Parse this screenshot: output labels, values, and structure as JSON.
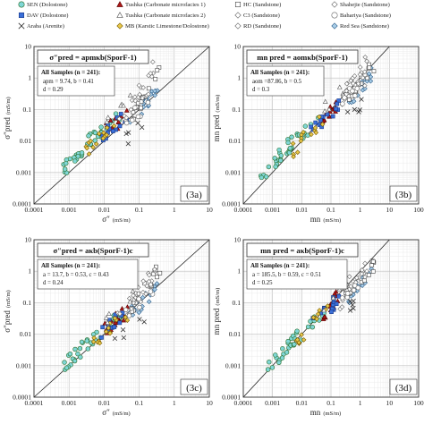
{
  "legend": {
    "entries": [
      {
        "label": "SEN (Dolostone)",
        "marker": "circle",
        "fill": "#7fd6d6",
        "stroke": "#2b6f2b"
      },
      {
        "label": "Tushka (Carbonate microfacies 1)",
        "marker": "triangle",
        "fill": "#b01818",
        "stroke": "#5a0000"
      },
      {
        "label": "HC (Sandstone)",
        "marker": "square",
        "fill": "#ffffff",
        "stroke": "#444444"
      },
      {
        "label": "Shahejie (Sandstone)",
        "marker": "diamond",
        "fill": "#ffffff",
        "stroke": "#666666"
      },
      {
        "label": "DAV (Dolostone)",
        "marker": "square",
        "fill": "#3a6fd8",
        "stroke": "#1a3a8a"
      },
      {
        "label": "Tushka (Carbonate microfacies 2)",
        "marker": "triangle",
        "fill": "#ffffff",
        "stroke": "#555555"
      },
      {
        "label": "C3 (Sandstone)",
        "marker": "diamond",
        "fill": "#ffffff",
        "stroke": "#666666"
      },
      {
        "label": "Bahariya (Sandstone)",
        "marker": "circle",
        "fill": "#ffffff",
        "stroke": "#666666"
      },
      {
        "label": "Araba (Arenite)",
        "marker": "x",
        "fill": "#333333",
        "stroke": "#333333"
      },
      {
        "label": "MB (Karstic Limestone/Dolostone)",
        "marker": "diamond",
        "fill": "#e8c84a",
        "stroke": "#7a5c00"
      },
      {
        "label": "RD (Sandstone)",
        "marker": "diamond",
        "fill": "#ffffff",
        "stroke": "#666666"
      },
      {
        "label": "Red Sea (Sandstone)",
        "marker": "diamond",
        "fill": "#a8cde8",
        "stroke": "#2f5f8a"
      }
    ]
  },
  "chart_data": [
    {
      "type": "scatter",
      "panel_label": "(3a)",
      "equation": "σ″pred = apmκb(SporF-1)",
      "stats_title": "All Samples (n = 241):",
      "stats_lines": [
        "apm = 9.74, b = 0.41",
        "d = 0.29"
      ],
      "xlabel": "σ″",
      "xunit": "(mS/m)",
      "ylabel": "σ″pred",
      "yunit": "(mS/m)",
      "xscale": "log",
      "yscale": "log",
      "xlim": [
        0.0001,
        10
      ],
      "ylim": [
        0.0001,
        10
      ],
      "xticks": [
        "0.0001",
        "0.001",
        "0.01",
        "0.1",
        "1",
        "10"
      ],
      "yticks": [
        "0.0001",
        "0.001",
        "0.01",
        "0.1",
        "1",
        "10"
      ],
      "grid": true,
      "clusters": [
        {
          "series": 0,
          "x": [
            0.0006,
            0.0045
          ],
          "y": [
            0.001,
            0.012
          ],
          "n": 20
        },
        {
          "series": 0,
          "x": [
            0.003,
            0.03
          ],
          "y": [
            0.008,
            0.06
          ],
          "n": 18
        },
        {
          "series": 1,
          "x": [
            0.01,
            0.05
          ],
          "y": [
            0.02,
            0.07
          ],
          "n": 16
        },
        {
          "series": 4,
          "x": [
            0.008,
            0.06
          ],
          "y": [
            0.015,
            0.09
          ],
          "n": 14
        },
        {
          "series": 9,
          "x": [
            0.003,
            0.04
          ],
          "y": [
            0.005,
            0.05
          ],
          "n": 14
        },
        {
          "series": 11,
          "x": [
            0.05,
            0.35
          ],
          "y": [
            0.04,
            0.4
          ],
          "n": 18
        },
        {
          "series": 2,
          "x": [
            0.06,
            0.4
          ],
          "y": [
            0.05,
            2.5
          ],
          "n": 16
        },
        {
          "series": 3,
          "x": [
            0.05,
            0.3
          ],
          "y": [
            0.1,
            3
          ],
          "n": 14
        },
        {
          "series": 6,
          "x": [
            0.02,
            0.2
          ],
          "y": [
            0.03,
            0.3
          ],
          "n": 10
        },
        {
          "series": 5,
          "x": [
            0.01,
            0.08
          ],
          "y": [
            0.05,
            0.3
          ],
          "n": 6
        },
        {
          "series": 8,
          "x": [
            0.02,
            0.15
          ],
          "y": [
            0.005,
            0.04
          ],
          "n": 5
        },
        {
          "series": 7,
          "x": [
            0.04,
            0.25
          ],
          "y": [
            0.04,
            0.2
          ],
          "n": 6
        }
      ]
    },
    {
      "type": "scatter",
      "panel_label": "(3b)",
      "equation": "mn pred = aomκb(SporF-1)",
      "stats_title": "All Samples (n = 241):",
      "stats_lines": [
        "aom =87.86, b = 0.5",
        "d = 0.3"
      ],
      "xlabel": "mn",
      "xunit": "(mS/m)",
      "ylabel": "mn pred",
      "yunit": "(mS/m)",
      "xscale": "log",
      "yscale": "log",
      "xlim": [
        0.0001,
        100
      ],
      "ylim": [
        0.0001,
        10
      ],
      "xticks": [
        "0.0001",
        "0.001",
        "0.01",
        "0.1",
        "1",
        "10",
        "100"
      ],
      "yticks": [
        "0.0001",
        "0.001",
        "0.01",
        "0.1",
        "1",
        "10"
      ],
      "grid": true,
      "clusters": [
        {
          "series": 0,
          "x": [
            0.0004,
            0.005
          ],
          "y": [
            0.0008,
            0.01
          ],
          "n": 18
        },
        {
          "series": 0,
          "x": [
            0.003,
            0.05
          ],
          "y": [
            0.005,
            0.06
          ],
          "n": 18
        },
        {
          "series": 1,
          "x": [
            0.05,
            0.2
          ],
          "y": [
            0.04,
            0.2
          ],
          "n": 14
        },
        {
          "series": 4,
          "x": [
            0.02,
            0.2
          ],
          "y": [
            0.02,
            0.15
          ],
          "n": 14
        },
        {
          "series": 9,
          "x": [
            0.005,
            0.08
          ],
          "y": [
            0.005,
            0.08
          ],
          "n": 14
        },
        {
          "series": 11,
          "x": [
            0.4,
            2.5
          ],
          "y": [
            0.15,
            1.5
          ],
          "n": 18
        },
        {
          "series": 2,
          "x": [
            0.3,
            3
          ],
          "y": [
            0.2,
            2.5
          ],
          "n": 16
        },
        {
          "series": 3,
          "x": [
            0.3,
            2
          ],
          "y": [
            0.5,
            4
          ],
          "n": 14
        },
        {
          "series": 6,
          "x": [
            0.2,
            1.5
          ],
          "y": [
            0.1,
            1
          ],
          "n": 10
        },
        {
          "series": 5,
          "x": [
            0.05,
            0.4
          ],
          "y": [
            0.1,
            0.6
          ],
          "n": 6
        },
        {
          "series": 8,
          "x": [
            0.3,
            1.5
          ],
          "y": [
            0.05,
            0.2
          ],
          "n": 5
        },
        {
          "series": 7,
          "x": [
            0.2,
            1.2
          ],
          "y": [
            0.15,
            0.8
          ],
          "n": 6
        }
      ]
    },
    {
      "type": "scatter",
      "panel_label": "(3c)",
      "equation": "σ″pred = aκb(SporF-1)c",
      "stats_title": "All Samples (n = 241):",
      "stats_lines": [
        "a = 13.7, b = 0.53, c = 0.43",
        "d = 0.24"
      ],
      "xlabel": "σ″",
      "xunit": "(mS/m)",
      "ylabel": "σ″pred",
      "yunit": "(mS/m)",
      "xscale": "log",
      "yscale": "log",
      "xlim": [
        0.0001,
        10
      ],
      "ylim": [
        0.0001,
        10
      ],
      "xticks": [
        "0.0001",
        "0.001",
        "0.01",
        "0.1",
        "1",
        "10"
      ],
      "yticks": [
        "0.0001",
        "0.001",
        "0.01",
        "0.1",
        "1",
        "10"
      ],
      "grid": true,
      "clusters": [
        {
          "series": 0,
          "x": [
            0.0006,
            0.005
          ],
          "y": [
            0.0008,
            0.008
          ],
          "n": 20
        },
        {
          "series": 0,
          "x": [
            0.004,
            0.04
          ],
          "y": [
            0.006,
            0.05
          ],
          "n": 18
        },
        {
          "series": 1,
          "x": [
            0.01,
            0.05
          ],
          "y": [
            0.015,
            0.06
          ],
          "n": 16
        },
        {
          "series": 4,
          "x": [
            0.008,
            0.06
          ],
          "y": [
            0.01,
            0.07
          ],
          "n": 14
        },
        {
          "series": 9,
          "x": [
            0.004,
            0.05
          ],
          "y": [
            0.004,
            0.05
          ],
          "n": 14
        },
        {
          "series": 11,
          "x": [
            0.05,
            0.35
          ],
          "y": [
            0.04,
            0.3
          ],
          "n": 18
        },
        {
          "series": 2,
          "x": [
            0.06,
            0.4
          ],
          "y": [
            0.06,
            1.5
          ],
          "n": 16
        },
        {
          "series": 3,
          "x": [
            0.05,
            0.3
          ],
          "y": [
            0.08,
            1.2
          ],
          "n": 14
        },
        {
          "series": 6,
          "x": [
            0.02,
            0.2
          ],
          "y": [
            0.03,
            0.25
          ],
          "n": 10
        },
        {
          "series": 5,
          "x": [
            0.01,
            0.08
          ],
          "y": [
            0.03,
            0.2
          ],
          "n": 6
        },
        {
          "series": 8,
          "x": [
            0.02,
            0.15
          ],
          "y": [
            0.006,
            0.04
          ],
          "n": 5
        },
        {
          "series": 7,
          "x": [
            0.04,
            0.25
          ],
          "y": [
            0.04,
            0.2
          ],
          "n": 6
        }
      ]
    },
    {
      "type": "scatter",
      "panel_label": "(3d)",
      "equation": "mn pred = aκb(SporF-1)c",
      "stats_title": "All Samples (n = 241):",
      "stats_lines": [
        "a = 185.5, b = 0.59, c = 0.51",
        "d = 0.25"
      ],
      "xlabel": "mn",
      "xunit": "(mS/m)",
      "ylabel": "mn pred",
      "yunit": "(mS/m)",
      "xscale": "log",
      "yscale": "log",
      "xlim": [
        0.0001,
        100
      ],
      "ylim": [
        0.0001,
        10
      ],
      "xticks": [
        "0.0001",
        "0.001",
        "0.01",
        "0.1",
        "1",
        "10",
        "100"
      ],
      "yticks": [
        "0.0001",
        "0.001",
        "0.01",
        "0.1",
        "1",
        "10"
      ],
      "grid": true,
      "clusters": [
        {
          "series": 0,
          "x": [
            0.0005,
            0.006
          ],
          "y": [
            0.0006,
            0.008
          ],
          "n": 18
        },
        {
          "series": 0,
          "x": [
            0.004,
            0.06
          ],
          "y": [
            0.005,
            0.05
          ],
          "n": 18
        },
        {
          "series": 1,
          "x": [
            0.05,
            0.2
          ],
          "y": [
            0.04,
            0.2
          ],
          "n": 14
        },
        {
          "series": 4,
          "x": [
            0.02,
            0.2
          ],
          "y": [
            0.02,
            0.15
          ],
          "n": 14
        },
        {
          "series": 9,
          "x": [
            0.006,
            0.08
          ],
          "y": [
            0.005,
            0.07
          ],
          "n": 14
        },
        {
          "series": 11,
          "x": [
            0.4,
            2.5
          ],
          "y": [
            0.15,
            1.2
          ],
          "n": 18
        },
        {
          "series": 2,
          "x": [
            0.3,
            3
          ],
          "y": [
            0.2,
            1.5
          ],
          "n": 16
        },
        {
          "series": 3,
          "x": [
            0.3,
            2
          ],
          "y": [
            0.3,
            2
          ],
          "n": 14
        },
        {
          "series": 6,
          "x": [
            0.2,
            1.5
          ],
          "y": [
            0.1,
            0.8
          ],
          "n": 10
        },
        {
          "series": 5,
          "x": [
            0.05,
            0.4
          ],
          "y": [
            0.08,
            0.5
          ],
          "n": 6
        },
        {
          "series": 8,
          "x": [
            0.3,
            1.5
          ],
          "y": [
            0.05,
            0.2
          ],
          "n": 5
        },
        {
          "series": 7,
          "x": [
            0.2,
            1.2
          ],
          "y": [
            0.12,
            0.6
          ],
          "n": 6
        }
      ]
    }
  ]
}
